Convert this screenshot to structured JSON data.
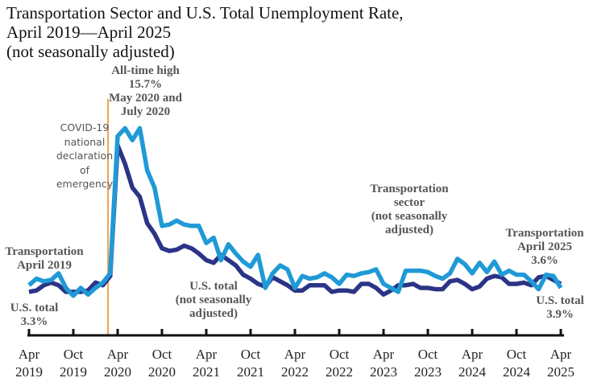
{
  "chart_data": {
    "type": "line",
    "title": "Transportation Sector and U.S. Total Unemployment Rate, April 2019—April 2025",
    "title_lines": [
      "Transportation Sector and U.S. Total Unemployment Rate,",
      "April 2019—April 2025"
    ],
    "subtitle": "(not seasonally adjusted)",
    "xlabel": "",
    "ylabel": "",
    "ylim": [
      0,
      16
    ],
    "start": "Apr 2019",
    "x_ticks": [
      {
        "month": 0,
        "label": [
          "Apr",
          "2019"
        ]
      },
      {
        "month": 6,
        "label": [
          "Oct",
          "2019"
        ]
      },
      {
        "month": 12,
        "label": [
          "Apr",
          "2020"
        ]
      },
      {
        "month": 18,
        "label": [
          "Oct",
          "2020"
        ]
      },
      {
        "month": 24,
        "label": [
          "Apr",
          "2021"
        ]
      },
      {
        "month": 30,
        "label": [
          "Oct",
          "2021"
        ]
      },
      {
        "month": 36,
        "label": [
          "Apr",
          "2022"
        ]
      },
      {
        "month": 42,
        "label": [
          "Oct",
          "2022"
        ]
      },
      {
        "month": 48,
        "label": [
          "Apr",
          "2023"
        ]
      },
      {
        "month": 54,
        "label": [
          "Oct",
          "2023"
        ]
      },
      {
        "month": 60,
        "label": [
          "Apr",
          "2024"
        ]
      },
      {
        "month": 66,
        "label": [
          "Oct",
          "2024"
        ]
      },
      {
        "month": 72,
        "label": [
          "Apr",
          "2025"
        ]
      }
    ],
    "series": [
      {
        "name": "U.S. total (not seasonally adjusted)",
        "color": "#2b3486",
        "values": [
          3.3,
          3.4,
          3.8,
          4.0,
          3.8,
          3.3,
          3.3,
          3.3,
          3.4,
          4.0,
          3.8,
          4.5,
          14.4,
          13.0,
          11.2,
          10.5,
          8.5,
          7.7,
          6.6,
          6.4,
          6.5,
          6.8,
          6.6,
          6.2,
          5.7,
          5.5,
          6.1,
          5.7,
          5.3,
          4.6,
          4.3,
          3.9,
          3.7,
          4.4,
          4.1,
          3.8,
          3.4,
          3.4,
          3.8,
          3.8,
          3.8,
          3.3,
          3.4,
          3.4,
          3.3,
          3.9,
          3.9,
          3.6,
          3.1,
          3.4,
          3.8,
          3.8,
          3.9,
          3.6,
          3.6,
          3.5,
          3.5,
          4.1,
          4.2,
          3.9,
          3.5,
          3.7,
          4.3,
          4.5,
          4.4,
          3.9,
          3.9,
          4.0,
          3.8,
          4.4,
          4.5,
          4.2,
          3.9
        ]
      },
      {
        "name": "Transportation sector (not seasonally adjusted)",
        "color": "#1f9ad6",
        "values": [
          3.8,
          4.3,
          4.1,
          4.2,
          4.7,
          3.6,
          3.0,
          3.6,
          3.1,
          3.6,
          4.0,
          4.7,
          15.1,
          15.7,
          14.8,
          15.7,
          12.5,
          11.2,
          8.3,
          8.4,
          8.7,
          8.4,
          8.3,
          8.3,
          7.0,
          7.4,
          5.7,
          6.9,
          6.2,
          5.6,
          5.2,
          6.1,
          3.6,
          4.7,
          5.3,
          5.0,
          3.6,
          4.5,
          4.3,
          4.4,
          4.7,
          4.4,
          3.9,
          4.6,
          4.5,
          4.7,
          4.8,
          5.0,
          3.9,
          3.6,
          3.3,
          4.9,
          4.9,
          4.9,
          4.8,
          4.5,
          4.3,
          4.7,
          5.8,
          5.4,
          4.7,
          5.5,
          4.8,
          5.6,
          4.6,
          4.9,
          4.6,
          4.6,
          4.1,
          3.5,
          4.6,
          4.5,
          3.6
        ]
      }
    ],
    "event_line": {
      "month": 10.7,
      "color": "#f0a050",
      "label": [
        "COVID-19",
        "national",
        "declaration",
        "of",
        "emergency"
      ]
    },
    "annotations": {
      "peak": [
        "All-time high",
        "15.7%",
        "May 2020 and",
        "July 2020"
      ],
      "transport_start": [
        "Transportation",
        "April 2019"
      ],
      "us_start": [
        "U.S. total",
        "3.3%"
      ],
      "us_mid": [
        "U.S. total",
        "(not seasonally",
        "adjusted)"
      ],
      "transport_mid": [
        "Transportation",
        "sector",
        "(not seasonally",
        "adjusted)"
      ],
      "transport_end": [
        "Transportation",
        "April 2025",
        "3.6%"
      ],
      "us_end": [
        "U.S. total",
        "3.9%"
      ]
    }
  }
}
